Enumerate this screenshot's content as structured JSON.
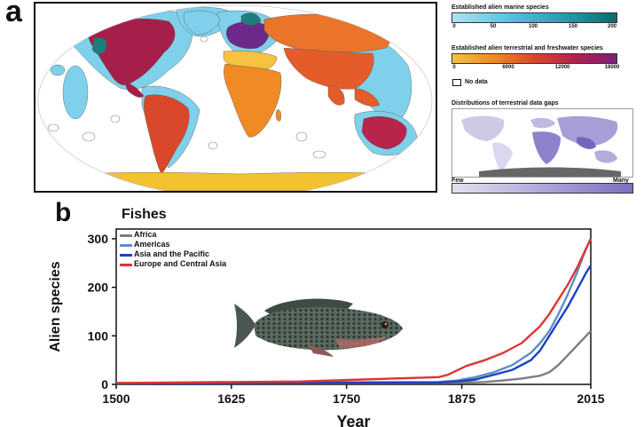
{
  "panel_a": {
    "letter": "a",
    "legend_marine": {
      "title": "Established alien marine species",
      "ticks": [
        "0",
        "50",
        "100",
        "150",
        "200"
      ],
      "colors": [
        "#aee3f2",
        "#5bc3e3",
        "#2a9db2",
        "#0f6b6a"
      ]
    },
    "legend_terrestrial": {
      "title": "Established alien terrestrial and freshwater species",
      "ticks": [
        "0",
        "6000",
        "12000",
        "18000"
      ],
      "colors": [
        "#f5c242",
        "#ef8a24",
        "#d9482b",
        "#b0224e",
        "#7a1e7a"
      ]
    },
    "no_data_label": "No data",
    "gaps": {
      "title": "Distributions of terrestrial data gaps",
      "low_label": "Few",
      "high_label": "Many",
      "colors": [
        "#e4e0f0",
        "#7c6fc0"
      ]
    },
    "map_colors": {
      "ocean_shelf": "#7fd0ea",
      "north_america": "#a61f4a",
      "greenland": "#7fd0ea",
      "south_america": "#d9482b",
      "europe": "#6b2a8a",
      "north_africa": "#f5c242",
      "africa": "#ef8a24",
      "russia": "#e9742a",
      "asia": "#e45c2a",
      "australia": "#b8244a",
      "antarctica": "#f2c230",
      "teal": "#1d7d7c"
    }
  },
  "panel_b": {
    "letter": "b"
  },
  "chart_data": {
    "type": "line",
    "title": "Fishes",
    "xlabel": "Year",
    "ylabel": "Alien species",
    "xlim": [
      1500,
      2015
    ],
    "ylim": [
      0,
      320
    ],
    "xticks": [
      1500,
      1625,
      1750,
      1875,
      2015
    ],
    "yticks": [
      0,
      100,
      200,
      300
    ],
    "grid": false,
    "legend_position": "top-left",
    "series": [
      {
        "name": "Africa",
        "color": "#7d7d7d",
        "x": [
          1500,
          1850,
          1880,
          1900,
          1920,
          1940,
          1960,
          1970,
          1980,
          1990,
          2000,
          2010,
          2015
        ],
        "y": [
          2,
          3,
          4,
          5,
          8,
          12,
          18,
          25,
          40,
          60,
          80,
          100,
          110
        ]
      },
      {
        "name": "Americas",
        "color": "#5b8fc7",
        "x": [
          1500,
          1850,
          1870,
          1890,
          1910,
          1930,
          1950,
          1960,
          1970,
          1980,
          1990,
          2000,
          2010,
          2015
        ],
        "y": [
          3,
          5,
          8,
          15,
          25,
          40,
          65,
          85,
          110,
          145,
          185,
          230,
          280,
          300
        ]
      },
      {
        "name": "Asia and the Pacific",
        "color": "#1f3fbf",
        "x": [
          1500,
          1850,
          1870,
          1890,
          1910,
          1930,
          1950,
          1960,
          1970,
          1980,
          1990,
          2000,
          2010,
          2015
        ],
        "y": [
          2,
          4,
          6,
          10,
          20,
          30,
          50,
          70,
          100,
          130,
          160,
          195,
          230,
          245
        ]
      },
      {
        "name": "Europe and Central Asia",
        "color": "#e03434",
        "x": [
          1500,
          1700,
          1850,
          1860,
          1880,
          1900,
          1920,
          1940,
          1960,
          1970,
          1980,
          1990,
          2000,
          2010,
          2015
        ],
        "y": [
          3,
          6,
          15,
          20,
          38,
          50,
          65,
          85,
          120,
          145,
          175,
          205,
          240,
          280,
          300
        ]
      }
    ]
  }
}
